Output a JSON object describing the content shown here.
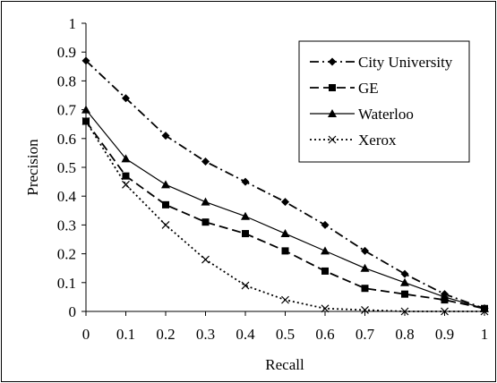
{
  "chart_data": {
    "type": "line",
    "title": "",
    "xlabel": "Recall",
    "ylabel": "Precision",
    "x": [
      0,
      0.1,
      0.2,
      0.3,
      0.4,
      0.5,
      0.6,
      0.7,
      0.8,
      0.9,
      1
    ],
    "x_tick_labels": [
      "0",
      "0.1",
      "0.2",
      "0.3",
      "0.4",
      "0.5",
      "0.6",
      "0.7",
      "0.8",
      "0.9",
      "1"
    ],
    "y_tick_labels": [
      "0",
      "0.1",
      "0.2",
      "0.3",
      "0.4",
      "0.5",
      "0.6",
      "0.7",
      "0.8",
      "0.9",
      "1"
    ],
    "xlim": [
      0,
      1
    ],
    "ylim": [
      0,
      1
    ],
    "grid": false,
    "legend_position": "top-right",
    "series": [
      {
        "name": "City University",
        "values": [
          0.87,
          0.74,
          0.61,
          0.52,
          0.45,
          0.38,
          0.3,
          0.21,
          0.13,
          0.06,
          0.01
        ],
        "color": "#000000",
        "line_style": "dash-dot",
        "marker": "diamond"
      },
      {
        "name": "GE",
        "values": [
          0.66,
          0.47,
          0.37,
          0.31,
          0.27,
          0.21,
          0.14,
          0.08,
          0.06,
          0.04,
          0.01
        ],
        "color": "#000000",
        "line_style": "dashed",
        "marker": "square"
      },
      {
        "name": "Waterloo",
        "values": [
          0.7,
          0.53,
          0.44,
          0.38,
          0.33,
          0.27,
          0.21,
          0.15,
          0.1,
          0.05,
          0.01
        ],
        "color": "#000000",
        "line_style": "solid",
        "marker": "triangle"
      },
      {
        "name": "Xerox",
        "values": [
          0.66,
          0.44,
          0.3,
          0.18,
          0.09,
          0.04,
          0.01,
          0.005,
          0.0,
          0.0,
          0.0
        ],
        "color": "#000000",
        "line_style": "dotted",
        "marker": "cross"
      }
    ]
  }
}
